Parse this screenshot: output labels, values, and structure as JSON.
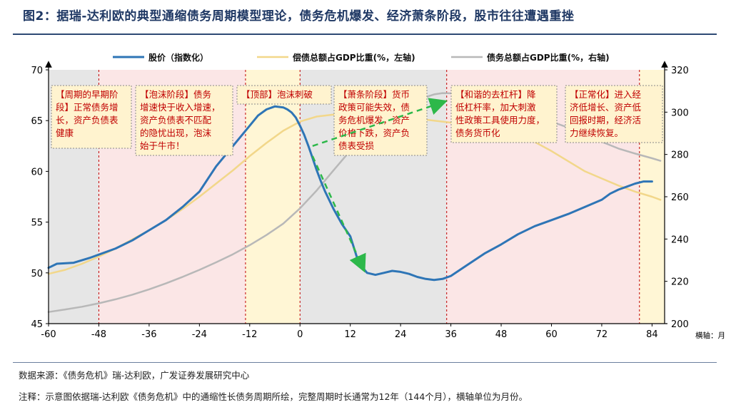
{
  "header": {
    "title": "图2：据瑞-达利欧的典型通缩债务周期模型理论，债务危机爆发、经济萧条阶段，股市往往遭遇重挫"
  },
  "footer": {
    "source": "数据来源：《债务危机》瑞-达利欧，广发证券发展研究中心",
    "note": "注释：示意图依据瑞-达利欧《债务危机》中的通缩性长债务周期所绘，完整周期时长通常为12年（144个月），横轴单位为月份。"
  },
  "colors": {
    "stock": "#2e75b6",
    "ratio": "#f2d78a",
    "debt_gdp": "#b8b8b8",
    "gray_shade": "#e6e6e6",
    "pink_shade": "#fbe6e6",
    "yellow_shade": "#fff6d5",
    "annotation_border": "#c00000",
    "arrow": "#2db84a"
  },
  "chart_data": {
    "type": "line",
    "xlabel": "横轴：月",
    "x_ticks": [
      -60,
      -48,
      -36,
      -24,
      -12,
      0,
      12,
      24,
      36,
      48,
      60,
      72,
      84
    ],
    "xlim": [
      -60,
      87
    ],
    "left_axis": {
      "ylim": [
        45,
        70
      ],
      "ticks": [
        45,
        50,
        55,
        60,
        65,
        70
      ]
    },
    "right_axis": {
      "ylim": [
        200,
        320
      ],
      "ticks": [
        200,
        220,
        240,
        260,
        280,
        300,
        320
      ]
    },
    "legend": [
      "股价（指数化）",
      "偿债总额占GDP比重(%，左轴)",
      "债务总额占GDP比重(%，右轴)"
    ],
    "series": [
      {
        "name": "股价（指数化）",
        "axis": "left",
        "color_key": "stock",
        "x": [
          -60,
          -58,
          -54,
          -50,
          -48,
          -44,
          -40,
          -36,
          -32,
          -28,
          -24,
          -20,
          -16,
          -12,
          -10,
          -8,
          -6,
          -4,
          -3,
          -2,
          -1,
          0,
          1,
          2,
          3,
          4,
          5,
          6,
          8,
          10,
          12,
          14,
          16,
          18,
          20,
          22,
          24,
          26,
          28,
          30,
          32,
          34,
          36,
          40,
          44,
          48,
          52,
          56,
          60,
          64,
          68,
          72,
          74,
          76,
          78,
          80,
          82,
          84
        ],
        "values": [
          50.5,
          50.9,
          51.0,
          51.5,
          51.8,
          52.4,
          53.2,
          54.2,
          55.2,
          56.5,
          58.0,
          60.5,
          62.5,
          64.5,
          65.5,
          66.1,
          66.4,
          66.3,
          66.1,
          65.8,
          65.3,
          64.5,
          63.6,
          62.5,
          61.3,
          60.1,
          59.0,
          58.0,
          56.3,
          54.8,
          53.6,
          51.0,
          50.0,
          49.8,
          50.0,
          50.2,
          50.1,
          49.9,
          49.6,
          49.4,
          49.3,
          49.4,
          49.7,
          50.8,
          51.9,
          52.8,
          53.8,
          54.6,
          55.2,
          55.8,
          56.5,
          57.2,
          57.8,
          58.2,
          58.5,
          58.8,
          59.0,
          59.0
        ]
      },
      {
        "name": "偿债总额占GDP比重(%，左轴)",
        "axis": "left",
        "color_key": "ratio",
        "x": [
          -60,
          -56,
          -52,
          -48,
          -44,
          -40,
          -36,
          -32,
          -28,
          -24,
          -20,
          -16,
          -12,
          -8,
          -4,
          0,
          4,
          8,
          12,
          16,
          20,
          24,
          28,
          32,
          36,
          40,
          44,
          48,
          52,
          56,
          60,
          64,
          68,
          72,
          76,
          80,
          84,
          86
        ],
        "values": [
          49.9,
          50.3,
          50.9,
          51.6,
          52.4,
          53.3,
          54.2,
          55.2,
          56.3,
          57.5,
          58.8,
          60.1,
          61.5,
          62.8,
          64.0,
          64.9,
          65.4,
          65.6,
          65.7,
          65.6,
          65.4,
          65.3,
          65.2,
          65.0,
          64.8,
          64.6,
          64.5,
          64.2,
          63.7,
          62.9,
          62.0,
          61.0,
          60.0,
          59.3,
          58.6,
          58.0,
          57.5,
          57.2
        ]
      },
      {
        "name": "债务总额占GDP比重(%，右轴)",
        "axis": "right",
        "color_key": "debt_gdp",
        "x": [
          -60,
          -56,
          -52,
          -48,
          -44,
          -40,
          -36,
          -32,
          -28,
          -24,
          -20,
          -16,
          -12,
          -8,
          -4,
          0,
          4,
          8,
          12,
          16,
          20,
          24,
          28,
          32,
          34,
          36,
          38,
          40,
          44,
          48,
          52,
          56,
          60,
          64,
          68,
          72,
          76,
          80,
          84,
          86
        ],
        "values": [
          205.5,
          206.7,
          208.0,
          209.6,
          211.5,
          213.7,
          216.2,
          219.0,
          222.1,
          225.4,
          229.0,
          232.8,
          237.1,
          241.9,
          247.3,
          254.5,
          263.0,
          272.5,
          281.8,
          290.0,
          296.8,
          302.0,
          305.8,
          308.4,
          309.0,
          308.9,
          308.2,
          307.2,
          305.1,
          302.9,
          300.5,
          298.0,
          295.5,
          292.7,
          289.5,
          286.0,
          282.8,
          280.4,
          278.2,
          277.0
        ]
      }
    ],
    "phases": [
      {
        "start": -60,
        "end": -48,
        "shade": "gray"
      },
      {
        "start": -48,
        "end": -13,
        "shade": "pink"
      },
      {
        "start": -13,
        "end": 0,
        "shade": "yellow"
      },
      {
        "start": 0,
        "end": 35,
        "shade": "gray"
      },
      {
        "start": 35,
        "end": 81,
        "shade": "pink"
      },
      {
        "start": 81,
        "end": 87,
        "shade": "yellow"
      }
    ],
    "annotations": [
      {
        "text": "【周期的早期阶段】正常债务增长，资产负债表健康",
        "lines": [
          "【周期的早期阶",
          "段】正常债务增",
          "长，资产负债表",
          "健康"
        ]
      },
      {
        "text": "【泡沫阶段】债务增速快于收入增速，资产负债表不匹配的隐忧出现，泡沫始于牛市！",
        "lines": [
          "【泡沫阶段】债务",
          "增速快于收入增速，",
          "资产负债表不匹配",
          "的隐忧出现，泡沫",
          "始于牛市！"
        ]
      },
      {
        "text": "【顶部】泡沫刺破",
        "lines": [
          "【顶部】泡沫刺破"
        ]
      },
      {
        "text": "【萧条阶段】货币政策可能失效，债务危机爆发，资产价格下跌，资产负债表受损",
        "lines": [
          "【萧条阶段】货币",
          "政策可能失效，债",
          "务危机爆发，资产",
          "价格下跌，资产负",
          "债表受损"
        ]
      },
      {
        "text": "【和谐的去杠杆】降低杠杆率，加大刺激性政策工具使用力度，债务货币化",
        "lines": [
          "【和谐的去杠杆】降",
          "低杠杆率，加大刺激",
          "性政策工具使用力度，",
          "债务货币化"
        ]
      },
      {
        "text": "【正常化】进入经济低增长、资产低回报时期，经济活力继续恢复。",
        "lines": [
          "【正常化】进入经",
          "济低增长、资产低",
          "回报时期，经济活",
          "力继续恢复。"
        ]
      }
    ]
  }
}
